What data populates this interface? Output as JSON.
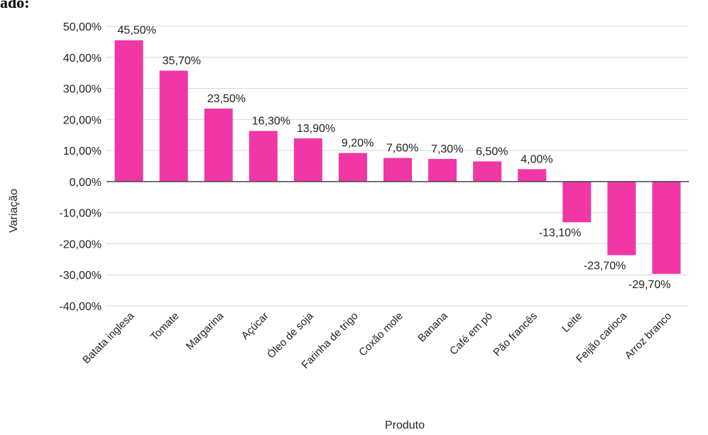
{
  "page": {
    "partial_title": "ado:"
  },
  "chart_data": {
    "type": "bar",
    "xlabel": "Produto",
    "ylabel": "Variação",
    "ylim": [
      -40,
      50
    ],
    "yticks": [
      50,
      40,
      30,
      20,
      10,
      0,
      -10,
      -20,
      -30,
      -40
    ],
    "ytick_labels": [
      "50,00%",
      "40,00%",
      "30,00%",
      "20,00%",
      "10,00%",
      "0,00%",
      "-10,00%",
      "-20,00%",
      "-30,00%",
      "-40,00%"
    ],
    "grid": true,
    "bar_color": "#f037a5",
    "categories": [
      "Batata inglesa",
      "Tomate",
      "Margarina",
      "Açúcar",
      "Óleo de soja",
      "Farinha de trigo",
      "Coxão mole",
      "Banana",
      "Café em pó",
      "Pão francês",
      "Leite",
      "Feijão carioca",
      "Arroz branco"
    ],
    "values": [
      45.5,
      35.7,
      23.5,
      16.3,
      13.9,
      9.2,
      7.6,
      7.3,
      6.5,
      4.0,
      -13.1,
      -23.7,
      -29.7
    ],
    "data_labels": [
      "45,50%",
      "35,70%",
      "23,50%",
      "16,30%",
      "13,90%",
      "9,20%",
      "7,60%",
      "7,30%",
      "6,50%",
      "4,00%",
      "-13,10%",
      "-23,70%",
      "-29,70%"
    ]
  }
}
